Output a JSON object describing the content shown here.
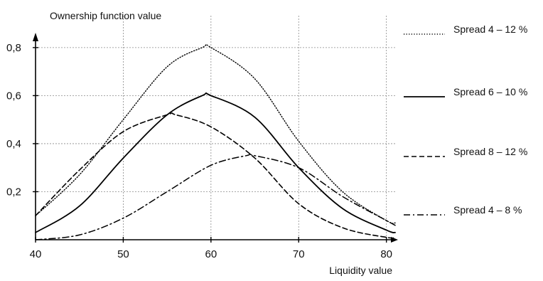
{
  "chart_data": {
    "type": "line",
    "title": "",
    "xlabel": "Liquidity value",
    "ylabel": "Ownership function value",
    "xlim": [
      40,
      81
    ],
    "ylim": [
      0,
      0.85
    ],
    "xticks": [
      40,
      50,
      60,
      70,
      80
    ],
    "xtick_labels": [
      "40",
      "50",
      "60",
      "70",
      "80"
    ],
    "yticks": [
      0.2,
      0.4,
      0.6,
      0.8
    ],
    "ytick_labels": [
      "0,2",
      "0,4",
      "0,6",
      "0,8"
    ],
    "grid": true,
    "legend_position": "right",
    "series": [
      {
        "name": "Spread 4 – 12 %",
        "style": "dotted",
        "x": [
          40,
          45,
          50,
          55,
          59,
          60,
          65,
          70,
          75,
          80,
          81
        ],
        "y": [
          0.1,
          0.27,
          0.5,
          0.72,
          0.8,
          0.8,
          0.67,
          0.41,
          0.2,
          0.08,
          0.07
        ]
      },
      {
        "name": "Spread 6 – 10 %",
        "style": "solid",
        "x": [
          40,
          45,
          50,
          55,
          59,
          60,
          65,
          70,
          75,
          80,
          81
        ],
        "y": [
          0.03,
          0.14,
          0.34,
          0.52,
          0.6,
          0.6,
          0.51,
          0.3,
          0.13,
          0.04,
          0.03
        ]
      },
      {
        "name": "Spread 8 – 12 %",
        "style": "dashed",
        "x": [
          40,
          45,
          50,
          55,
          56,
          60,
          65,
          70,
          75,
          80,
          81
        ],
        "y": [
          0.1,
          0.29,
          0.45,
          0.52,
          0.52,
          0.47,
          0.34,
          0.15,
          0.05,
          0.01,
          0.01
        ]
      },
      {
        "name": "Spread 4 – 8 %",
        "style": "dash-dot",
        "x": [
          40,
          45,
          50,
          55,
          60,
          64,
          65,
          70,
          75,
          80,
          81
        ],
        "y": [
          0.0,
          0.02,
          0.09,
          0.2,
          0.31,
          0.35,
          0.35,
          0.3,
          0.18,
          0.08,
          0.06
        ]
      }
    ]
  }
}
